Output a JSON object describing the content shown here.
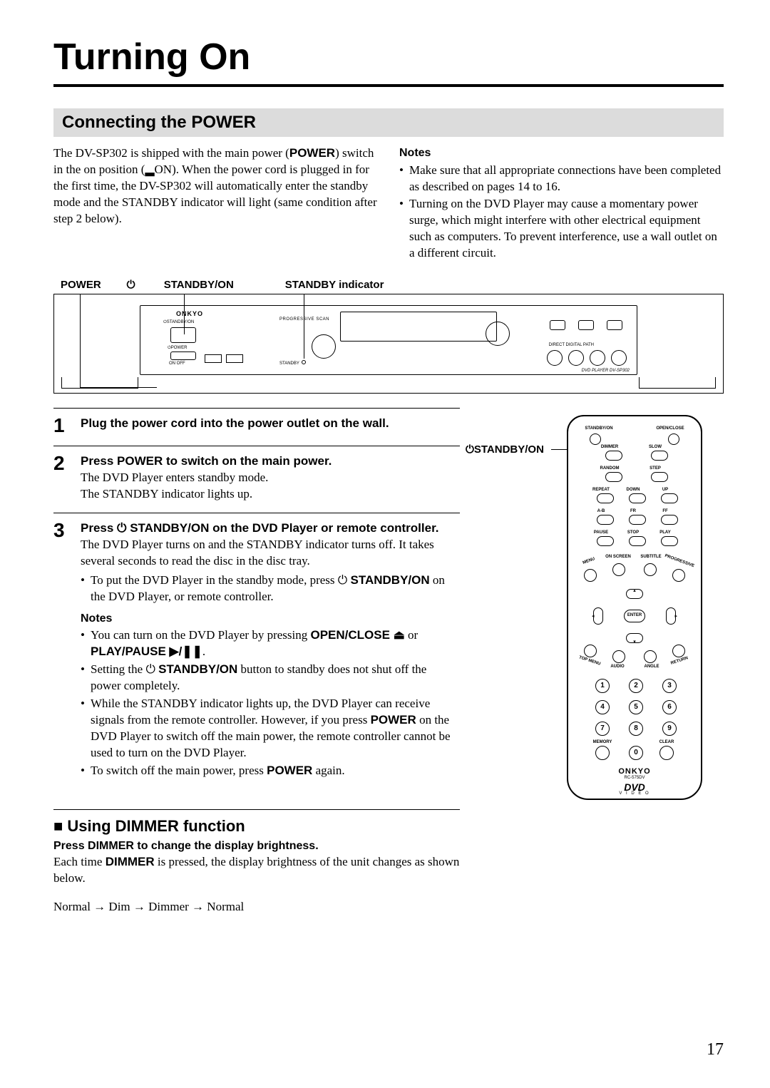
{
  "page": {
    "title": "Turning On",
    "number": "17"
  },
  "section1": {
    "heading": "Connecting the POWER",
    "intro_p1a": "The DV-SP302 is shipped with the main power (",
    "intro_p1b": "POWER",
    "intro_p1c": ") switch in the on position (",
    "intro_p1d": "▂",
    "intro_p1e": "ON). When the power cord is plugged in for the first time, the DV-SP302 will automatically enter the standby mode and the STANDBY indicator will light (same condition after step 2 below).",
    "notes_heading": "Notes",
    "note1": "Make sure that all appropriate connections have been completed as described on pages 14 to 16.",
    "note2": "Turning on the DVD Player may cause a momentary power surge, which might interfere with other electrical equipment such as computers. To prevent interference, use a wall outlet on a different circuit."
  },
  "panel_labels": {
    "l1": "POWER",
    "l2_pre": "⏻ ",
    "l2": "STANDBY/ON",
    "l3": "STANDBY indicator"
  },
  "panel": {
    "brand": "ONKYO",
    "progressive": "PROGRESSIVE SCAN",
    "standbyon": "STANDBY/ON",
    "power": "POWER",
    "onoff": "ON  OFF",
    "standby": "STANDBY",
    "ddp": "DIRECT DIGITAL PATH",
    "model": "DVD PLAYER  DV-SP302"
  },
  "steps": {
    "s1": {
      "num": "1",
      "heading": "Plug the power cord into the power outlet on the wall."
    },
    "s2": {
      "num": "2",
      "heading": "Press POWER to switch on the main power.",
      "body1": "The DVD Player enters standby mode.",
      "body2": "The STANDBY indicator lights up."
    },
    "s3": {
      "num": "3",
      "heading_a": "Press ",
      "heading_b": "⏻ ",
      "heading_c": "STANDBY/ON on the DVD Player or remote controller.",
      "body1": "The DVD Player turns on and the STANDBY indicator turns off. It takes several seconds to read the disc in the disc tray.",
      "bullet1a": "To put the DVD Player in the standby mode, press ",
      "bullet1b": "⏻ ",
      "bullet1c": "STANDBY/ON",
      "bullet1d": " on the DVD Player, or remote controller.",
      "notes_heading": "Notes",
      "n1a": "You can turn on the DVD Player by pressing ",
      "n1b": "OPEN/CLOSE ",
      "n1c": "⏏",
      "n1d": " or ",
      "n1e": "PLAY/PAUSE ",
      "n1f": "▶/❚❚",
      "n1g": ".",
      "n2a": "Setting the ",
      "n2b": "⏻ ",
      "n2c": "STANDBY/ON",
      "n2d": " button to standby does not shut off the power completely.",
      "n3a": "While the STANDBY indicator lights up, the DVD Player can receive signals from the remote controller. However, if you press ",
      "n3b": "POWER",
      "n3c": " on the DVD Player to switch off the main power, the remote controller cannot be used to turn on the DVD Player.",
      "n4a": "To switch off the main power, press ",
      "n4b": "POWER",
      "n4c": " again."
    }
  },
  "dimmer": {
    "title": "Using DIMMER function",
    "sub": "Press DIMMER to change the display brightness.",
    "body_a": "Each time ",
    "body_b": "DIMMER",
    "body_c": " is pressed, the display brightness of the unit changes as shown below.",
    "seq": "Normal → Dim → Dimmer → Normal"
  },
  "remote": {
    "label_pre": "⏻",
    "label": "STANDBY/ON",
    "top": {
      "standby": "STANDBY/ON",
      "open": "OPEN/CLOSE"
    },
    "rows": [
      {
        "l": "DIMMER",
        "r": "SLOW"
      },
      {
        "l": "RANDOM",
        "r": "STEP"
      },
      {
        "l": "REPEAT",
        "m": "DOWN",
        "r": "UP"
      },
      {
        "l": "A-B",
        "m": "FR",
        "r": "FF"
      },
      {
        "l": "PAUSE",
        "m": "STOP",
        "r": "PLAY"
      }
    ],
    "arc_top": {
      "a": "MENU",
      "b": "ON SCREEN",
      "c": "SUBTITLE",
      "d": "PROGRESSIVE"
    },
    "enter": "ENTER",
    "arc_bot": {
      "a": "TOP MENU",
      "b": "AUDIO",
      "c": "ANGLE",
      "d": "RETURN"
    },
    "bottom": {
      "mem": "MEMORY",
      "clr": "CLEAR"
    },
    "brand": "ONKYO",
    "model": "RC-575DV",
    "dvd": "DVD",
    "video": "V I D E O"
  }
}
